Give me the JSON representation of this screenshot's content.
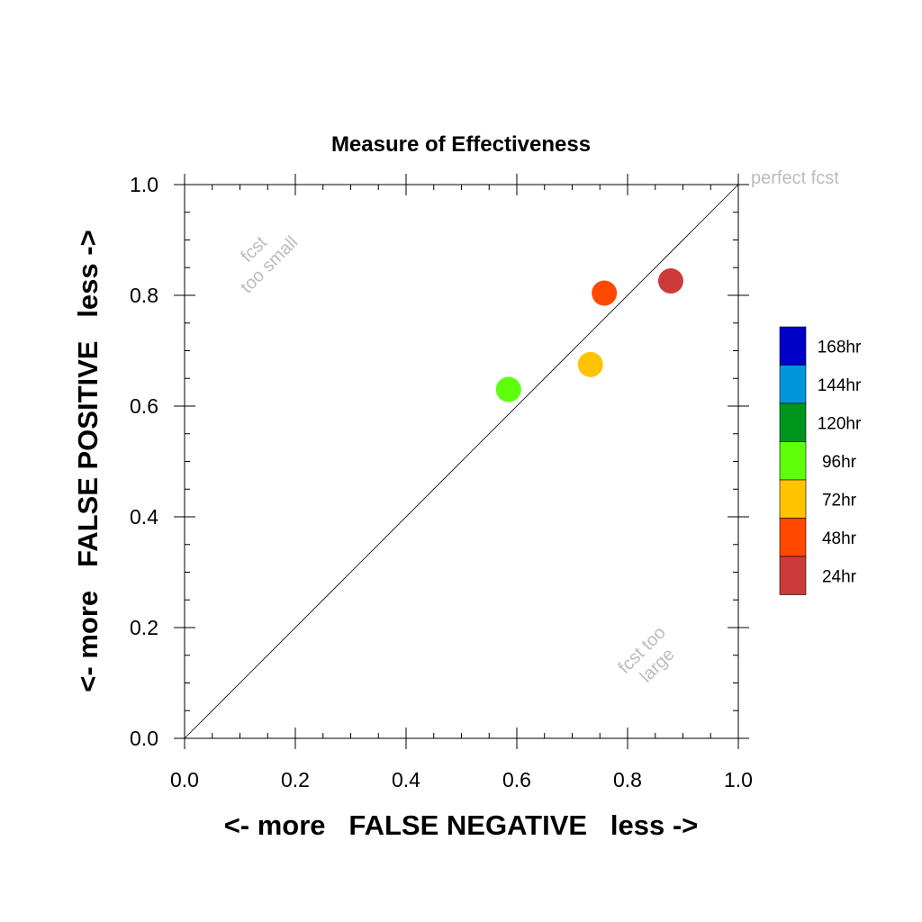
{
  "chart_data": {
    "type": "scatter",
    "title": "Measure of Effectiveness",
    "xlabel": "<- more   FALSE NEGATIVE   less ->",
    "ylabel": "<- more   FALSE POSITIVE   less ->",
    "xlim": [
      0.0,
      1.0
    ],
    "ylim": [
      0.0,
      1.0
    ],
    "x_ticks": [
      "0.0",
      "0.2",
      "0.4",
      "0.6",
      "0.8",
      "1.0"
    ],
    "y_ticks": [
      "0.0",
      "0.2",
      "0.4",
      "0.6",
      "0.8",
      "1.0"
    ],
    "grid": false,
    "reference_line": {
      "from": [
        0.0,
        0.0
      ],
      "to": [
        1.0,
        1.0
      ],
      "label": "perfect fcst"
    },
    "annotations": {
      "upper_left": [
        "fcst",
        "too small"
      ],
      "lower_right": [
        "fcst too",
        "large"
      ]
    },
    "points": [
      {
        "lead": "96hr",
        "x": 0.585,
        "y": 0.63,
        "color": "#5dff0a"
      },
      {
        "lead": "72hr",
        "x": 0.733,
        "y": 0.675,
        "color": "#ffc300"
      },
      {
        "lead": "48hr",
        "x": 0.758,
        "y": 0.804,
        "color": "#ff4800"
      },
      {
        "lead": "24hr",
        "x": 0.878,
        "y": 0.826,
        "color": "#cc3a3a"
      }
    ],
    "legend_placement": "right",
    "legend": [
      {
        "label": "168hr",
        "color": "#0000c8"
      },
      {
        "label": "144hr",
        "color": "#0096dc"
      },
      {
        "label": "120hr",
        "color": "#00961e"
      },
      {
        "label": "96hr",
        "color": "#5dff0a"
      },
      {
        "label": "72hr",
        "color": "#ffc300"
      },
      {
        "label": "48hr",
        "color": "#ff4800"
      },
      {
        "label": "24hr",
        "color": "#cc3a3a"
      }
    ]
  }
}
